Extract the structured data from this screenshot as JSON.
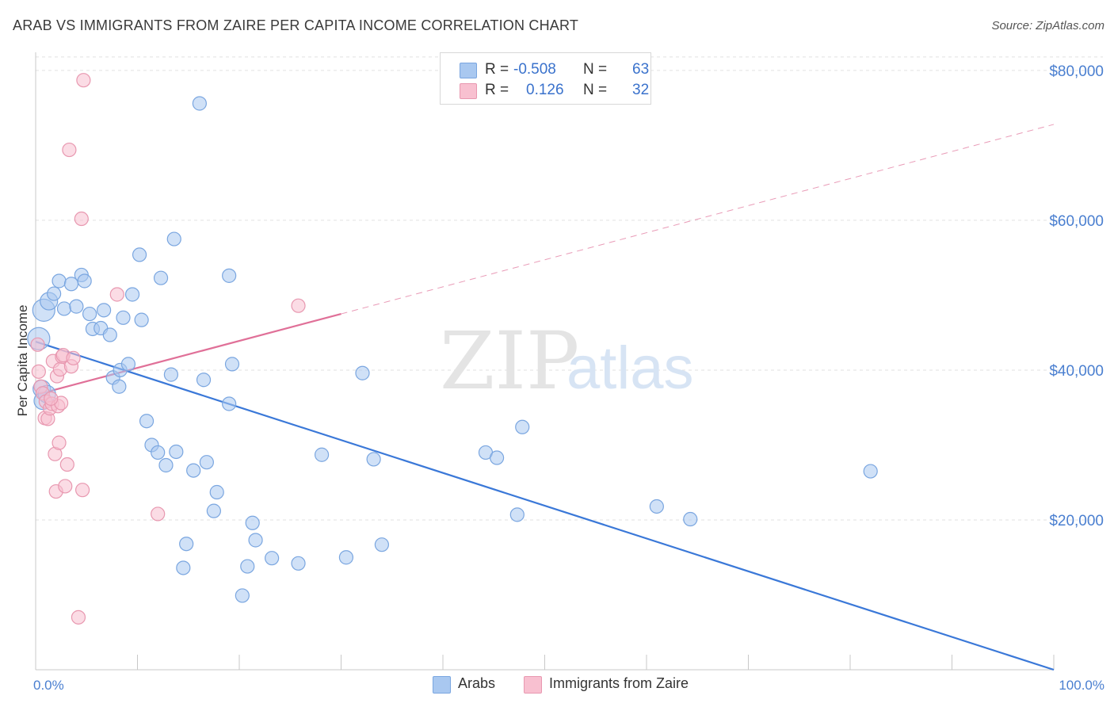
{
  "title": "ARAB VS IMMIGRANTS FROM ZAIRE PER CAPITA INCOME CORRELATION CHART",
  "source": "Source: ZipAtlas.com",
  "watermark": {
    "zip": "ZIP",
    "atlas": "atlas"
  },
  "legend": {
    "rows": [
      {
        "r_label": "R =",
        "r_value": "-0.508",
        "n_label": "N =",
        "n_value": "63",
        "color": "#a9c8f0",
        "border": "#7aa6e0"
      },
      {
        "r_label": "R =",
        "r_value": "0.126",
        "n_label": "N =",
        "n_value": "32",
        "color": "#f8c0d0",
        "border": "#e898b0"
      }
    ]
  },
  "bottom_legend": {
    "arabs": "Arabs",
    "zaire": "Immigrants from Zaire"
  },
  "chart_data": {
    "type": "scatter",
    "title": "ARAB VS IMMIGRANTS FROM ZAIRE PER CAPITA INCOME CORRELATION CHART",
    "xlabel": "",
    "ylabel": "Per Capita Income",
    "xlim": [
      0,
      100
    ],
    "ylim": [
      0,
      82000
    ],
    "x_tick_labels": [
      "0.0%",
      "100.0%"
    ],
    "y_ticks": [
      20000,
      40000,
      60000,
      80000
    ],
    "y_tick_labels": [
      "$20,000",
      "$40,000",
      "$60,000",
      "$80,000"
    ],
    "grid": "horizontal dashed",
    "legend_position": "top-center",
    "series": [
      {
        "name": "Arabs",
        "color": "#7aa6e0",
        "fill": "#a9c8f0",
        "trend_color": "#3a78d8",
        "trend": [
          [
            0,
            43800
          ],
          [
            100,
            0
          ]
        ],
        "points": [
          [
            0.3,
            44200
          ],
          [
            0.6,
            37500
          ],
          [
            0.8,
            48000
          ],
          [
            1.3,
            49200
          ],
          [
            1.8,
            50200
          ],
          [
            2.3,
            51900
          ],
          [
            2.8,
            48200
          ],
          [
            3.5,
            51500
          ],
          [
            4.0,
            48500
          ],
          [
            4.5,
            52700
          ],
          [
            4.8,
            51900
          ],
          [
            5.3,
            47500
          ],
          [
            5.6,
            45500
          ],
          [
            6.4,
            45600
          ],
          [
            6.7,
            48000
          ],
          [
            7.3,
            44700
          ],
          [
            7.6,
            39000
          ],
          [
            8.2,
            37800
          ],
          [
            8.3,
            40000
          ],
          [
            8.6,
            47000
          ],
          [
            9.1,
            40800
          ],
          [
            9.5,
            50100
          ],
          [
            10.2,
            55400
          ],
          [
            10.4,
            46700
          ],
          [
            10.9,
            33200
          ],
          [
            11.4,
            30000
          ],
          [
            12.0,
            29000
          ],
          [
            12.3,
            52300
          ],
          [
            12.8,
            27300
          ],
          [
            13.3,
            39400
          ],
          [
            13.6,
            57500
          ],
          [
            13.8,
            29100
          ],
          [
            14.5,
            13600
          ],
          [
            14.8,
            16800
          ],
          [
            15.5,
            26600
          ],
          [
            16.1,
            75600
          ],
          [
            16.5,
            38700
          ],
          [
            16.8,
            27700
          ],
          [
            17.5,
            21200
          ],
          [
            17.8,
            23700
          ],
          [
            19.0,
            52600
          ],
          [
            19.0,
            35500
          ],
          [
            19.3,
            40800
          ],
          [
            20.3,
            9900
          ],
          [
            20.8,
            13800
          ],
          [
            21.3,
            19600
          ],
          [
            21.6,
            17300
          ],
          [
            23.2,
            14900
          ],
          [
            25.8,
            14200
          ],
          [
            28.1,
            28700
          ],
          [
            30.5,
            15000
          ],
          [
            32.1,
            39600
          ],
          [
            33.2,
            28100
          ],
          [
            34.0,
            16700
          ],
          [
            44.2,
            29000
          ],
          [
            45.3,
            28300
          ],
          [
            47.3,
            20700
          ],
          [
            47.8,
            32400
          ],
          [
            61.0,
            21800
          ],
          [
            64.3,
            20100
          ],
          [
            82.0,
            26500
          ],
          [
            0.7,
            35900
          ],
          [
            1.1,
            36800
          ]
        ]
      },
      {
        "name": "Immigrants from Zaire",
        "color": "#e898b0",
        "fill": "#f8c0d0",
        "trend_color": "#e07098",
        "trend": [
          [
            0,
            36700
          ],
          [
            30,
            47500
          ]
        ],
        "trend_extension": [
          [
            30,
            47500
          ],
          [
            100,
            72800
          ]
        ],
        "points": [
          [
            0.2,
            43400
          ],
          [
            0.3,
            39800
          ],
          [
            0.5,
            37800
          ],
          [
            0.7,
            36900
          ],
          [
            0.9,
            33600
          ],
          [
            1.0,
            35800
          ],
          [
            1.2,
            33500
          ],
          [
            1.4,
            34900
          ],
          [
            1.6,
            35500
          ],
          [
            1.7,
            41200
          ],
          [
            1.9,
            28800
          ],
          [
            2.0,
            23800
          ],
          [
            2.1,
            39200
          ],
          [
            2.2,
            35200
          ],
          [
            2.3,
            30300
          ],
          [
            2.4,
            40100
          ],
          [
            2.5,
            35600
          ],
          [
            2.6,
            41800
          ],
          [
            2.7,
            42000
          ],
          [
            2.9,
            24500
          ],
          [
            3.1,
            27400
          ],
          [
            3.3,
            69400
          ],
          [
            3.5,
            40500
          ],
          [
            3.7,
            41600
          ],
          [
            4.2,
            7000
          ],
          [
            4.5,
            60200
          ],
          [
            4.6,
            24000
          ],
          [
            4.7,
            78700
          ],
          [
            8.0,
            50100
          ],
          [
            12.0,
            20800
          ],
          [
            25.8,
            48600
          ],
          [
            1.5,
            36200
          ]
        ]
      }
    ]
  }
}
